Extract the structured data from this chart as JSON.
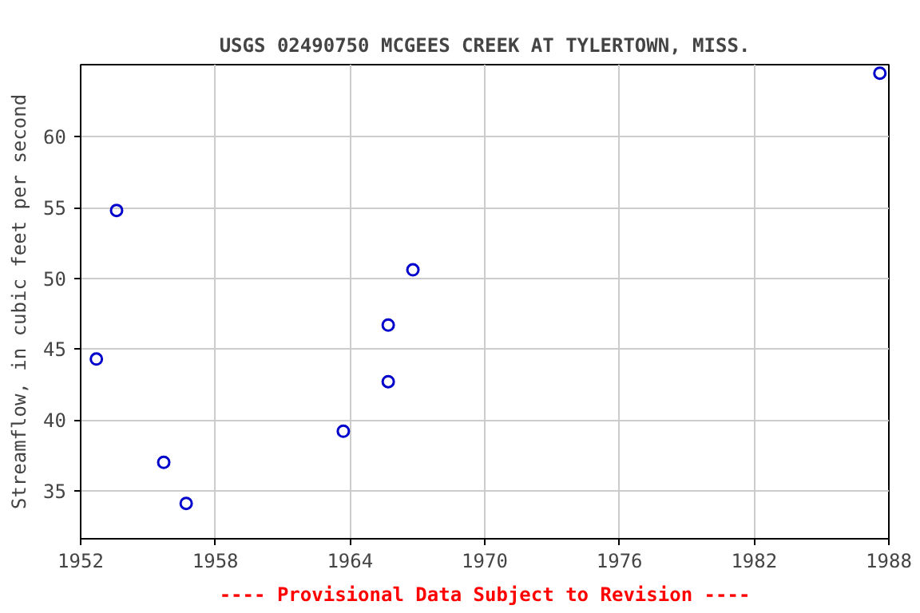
{
  "chart_data": {
    "type": "scatter",
    "title": "USGS 02490750 MCGEES CREEK AT TYLERTOWN, MISS.",
    "ylabel": "Streamflow, in cubic feet per second",
    "annotations": [
      "---- Provisional Data Subject to Revision ----"
    ],
    "x": [
      1952.7,
      1953.6,
      1955.7,
      1956.7,
      1963.7,
      1965.7,
      1965.7,
      1966.8,
      1987.6
    ],
    "series": [
      {
        "color": "#0000cc",
        "values": [
          44.3,
          54.8,
          37.0,
          34.1,
          39.2,
          42.7,
          46.7,
          50.6,
          64.5
        ]
      }
    ],
    "xlim": [
      1952,
      1988
    ],
    "xticks": [
      1952,
      1958,
      1964,
      1970,
      1976,
      1982,
      1988
    ],
    "ylim": [
      31.6,
      65.1
    ],
    "yticks": [
      35,
      40,
      45,
      50,
      55,
      60
    ],
    "grid": true,
    "marker": "circle"
  }
}
